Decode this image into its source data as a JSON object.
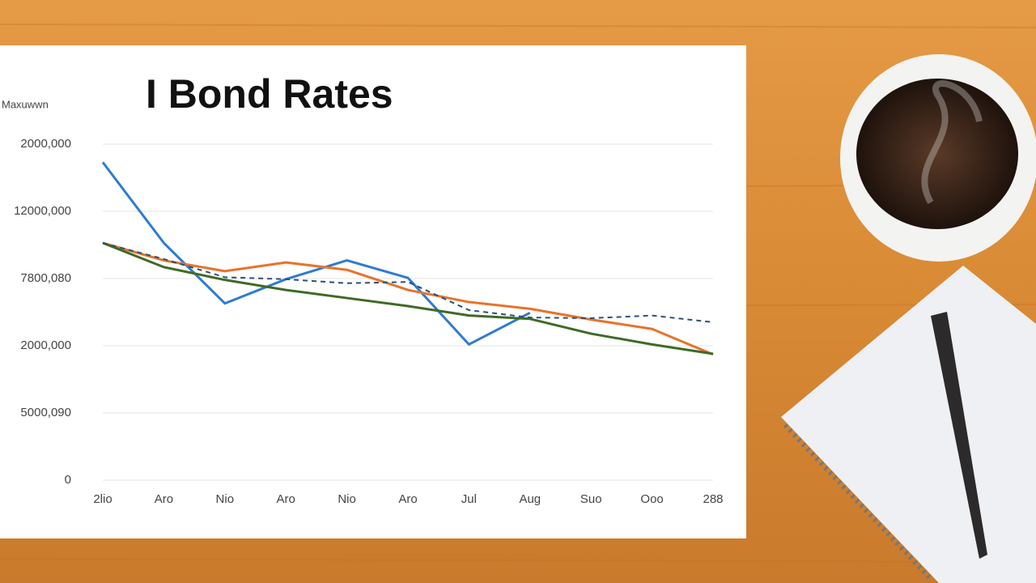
{
  "chart_data": {
    "type": "line",
    "title": "I Bond Rates",
    "y_label": "Maxuwwn",
    "categories": [
      "2lio",
      "Aro",
      "Nio",
      "Aro",
      "Nio",
      "Aro",
      "Jul",
      "Aug",
      "Suo",
      "Ooo",
      "288"
    ],
    "series": [
      {
        "color": "#2f7bd0",
        "dash": false,
        "values": [
          4.73,
          3.53,
          2.63,
          2.99,
          3.27,
          3.01,
          2.02,
          2.49,
          null,
          null,
          null
        ]
      },
      {
        "color": "#e8732a",
        "dash": false,
        "values": [
          3.53,
          3.27,
          3.11,
          3.24,
          3.13,
          2.83,
          2.65,
          2.55,
          2.39,
          2.25,
          1.87
        ]
      },
      {
        "color": "#3f6b25",
        "dash": false,
        "values": [
          3.53,
          3.17,
          2.98,
          2.83,
          2.71,
          2.59,
          2.45,
          2.4,
          2.18,
          2.02,
          1.88
        ]
      },
      {
        "color": "#2d4f7a",
        "dash": true,
        "values": [
          3.53,
          3.29,
          3.02,
          2.99,
          2.93,
          2.95,
          2.53,
          2.42,
          2.41,
          2.45,
          2.35
        ]
      }
    ],
    "ylim": [
      0,
      5.2
    ],
    "yticks": [
      {
        "value": 0,
        "label": "0"
      },
      {
        "value": 1,
        "label": "5000,090"
      },
      {
        "value": 2,
        "label": "2000,000"
      },
      {
        "value": 3,
        "label": "7800,080"
      },
      {
        "value": 4,
        "label": "12000,000"
      },
      {
        "value": 5,
        "label": "2000,000"
      }
    ],
    "grid": true
  }
}
